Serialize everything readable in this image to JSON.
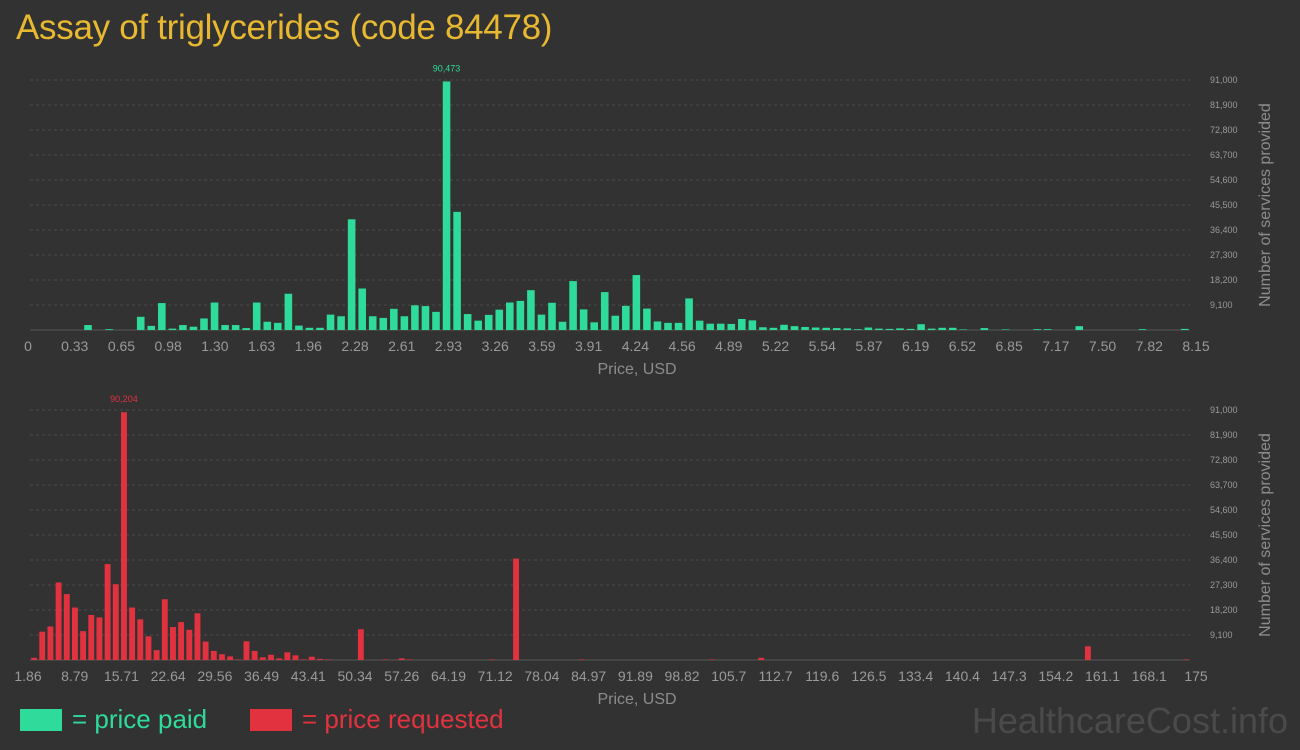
{
  "title": "Assay of triglycerides (code 84478)",
  "watermark": "HealthcareCost.info",
  "legend": {
    "paid_label": "= price paid",
    "requested_label": "= price requested"
  },
  "colors": {
    "paid": "#2edb9b",
    "requested": "#e2323f",
    "title": "#e8b830",
    "background": "#323232"
  },
  "chart_data": [
    {
      "type": "bar",
      "series": [
        {
          "name": "price paid",
          "values": [
            0,
            0,
            0,
            0,
            0,
            1800,
            0,
            300,
            0,
            0,
            4800,
            1500,
            9800,
            500,
            1800,
            1200,
            4200,
            10000,
            1800,
            1800,
            700,
            10000,
            3000,
            2600,
            13200,
            1600,
            800,
            800,
            5600,
            5000,
            40300,
            15100,
            5000,
            4400,
            7700,
            5000,
            9000,
            8700,
            6600,
            90473,
            43000,
            5800,
            3400,
            5500,
            7400,
            10000,
            10600,
            14500,
            5600,
            9900,
            3000,
            17800,
            7500,
            2800,
            13800,
            5200,
            8800,
            20000,
            7800,
            3100,
            2600,
            2600,
            11500,
            3400,
            2300,
            2300,
            2200,
            4000,
            3500,
            1000,
            800,
            1900,
            1400,
            1100,
            900,
            800,
            700,
            600,
            300,
            900,
            500,
            400,
            600,
            400,
            2100,
            500,
            800,
            800,
            200,
            0,
            700,
            0,
            200,
            0,
            0,
            300,
            300,
            0,
            0,
            1400,
            0,
            0,
            0,
            0,
            0,
            300,
            0,
            0,
            0,
            400
          ]
        }
      ],
      "x_tick_labels": [
        "0",
        "0.33",
        "0.65",
        "0.98",
        "1.30",
        "1.63",
        "1.96",
        "2.28",
        "2.61",
        "2.93",
        "3.26",
        "3.59",
        "3.91",
        "4.24",
        "4.56",
        "4.89",
        "5.22",
        "5.54",
        "5.87",
        "6.19",
        "6.52",
        "6.85",
        "7.17",
        "7.50",
        "7.82",
        "8.15"
      ],
      "y_tick_labels": [
        "9,100",
        "18,200",
        "27,300",
        "36,400",
        "45,500",
        "54,600",
        "63,700",
        "72,800",
        "81,900",
        "91,000"
      ],
      "xlabel": "Price, USD",
      "ylabel": "Number of services provided",
      "ylim": [
        0,
        91000
      ],
      "peak_label": "90,473",
      "peak_index": 39,
      "grid": true
    },
    {
      "type": "bar",
      "series": [
        {
          "name": "price requested",
          "values": [
            800,
            10300,
            12200,
            28200,
            24000,
            19100,
            10500,
            16400,
            15500,
            34900,
            27600,
            90204,
            19100,
            14800,
            8600,
            3600,
            22100,
            12000,
            13800,
            11000,
            17000,
            6700,
            3300,
            2100,
            1300,
            200,
            6800,
            3300,
            1000,
            1900,
            600,
            2800,
            1700,
            200,
            1200,
            400,
            200,
            0,
            0,
            0,
            11200,
            0,
            0,
            200,
            0,
            600,
            200,
            0,
            0,
            0,
            0,
            0,
            0,
            0,
            0,
            0,
            200,
            0,
            0,
            36900,
            0,
            0,
            0,
            0,
            0,
            0,
            0,
            200,
            0,
            0,
            0,
            0,
            0,
            0,
            0,
            0,
            0,
            0,
            0,
            0,
            0,
            0,
            0,
            200,
            0,
            0,
            0,
            0,
            0,
            800,
            0,
            0,
            0,
            0,
            0,
            0,
            0,
            0,
            0,
            0,
            0,
            0,
            0,
            0,
            0,
            0,
            0,
            0,
            0,
            0,
            0,
            0,
            0,
            0,
            0,
            0,
            0,
            0,
            0,
            0,
            0,
            0,
            0,
            0,
            0,
            0,
            0,
            0,
            0,
            5000,
            0,
            0,
            0,
            0,
            0,
            0,
            0,
            0,
            0,
            0,
            0,
            200
          ]
        }
      ],
      "x_tick_labels": [
        "1.86",
        "8.79",
        "15.71",
        "22.64",
        "29.56",
        "36.49",
        "43.41",
        "50.34",
        "57.26",
        "64.19",
        "71.12",
        "78.04",
        "84.97",
        "91.89",
        "98.82",
        "105.7",
        "112.7",
        "119.6",
        "126.5",
        "133.4",
        "140.4",
        "147.3",
        "154.2",
        "161.1",
        "168.1",
        "175"
      ],
      "y_tick_labels": [
        "9,100",
        "18,200",
        "27,300",
        "36,400",
        "45,500",
        "54,600",
        "63,700",
        "72,800",
        "81,900",
        "91,000"
      ],
      "xlabel": "Price, USD",
      "ylabel": "Number of services provided",
      "ylim": [
        0,
        91000
      ],
      "peak_label": "90,204",
      "peak_index": 11,
      "grid": true
    }
  ]
}
